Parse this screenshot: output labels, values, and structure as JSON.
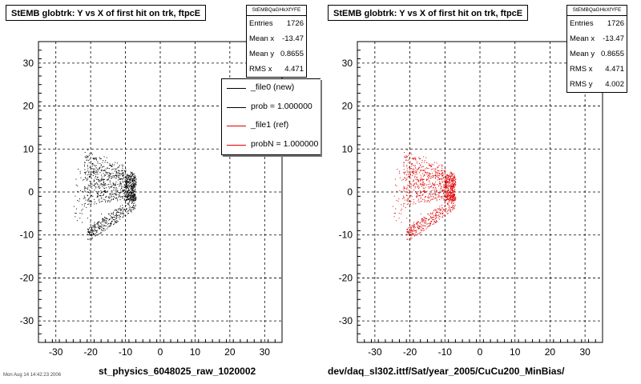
{
  "charts": [
    {
      "title": "StEMB globtrk: Y vs X of first hit on trk, ftpcE",
      "xtitle": "st_physics_6048025_raw_1020002",
      "stats": {
        "header": "StEMBQaGHkXfYFE",
        "rows": [
          {
            "label": "Entries",
            "value": "1726"
          },
          {
            "label": "Mean x",
            "value": "-13.47"
          },
          {
            "label": "Mean y",
            "value": "0.8655"
          },
          {
            "label": "RMS x",
            "value": "4.471"
          }
        ]
      },
      "legend": [
        {
          "label": "_file0 (new)",
          "color": "#000000"
        },
        {
          "label": "prob = 1.000000",
          "color": "#000000"
        },
        {
          "label": "_file1 (ref)",
          "color": "#e00000"
        },
        {
          "label": "probN = 1.000000",
          "color": "#e00000"
        }
      ],
      "date_stamp": "Mon Aug 14 14:42:23 2006"
    },
    {
      "title": "StEMB globtrk: Y vs X of first hit on trk, ftpcE",
      "xtitle": "dev/daq_sl302.ittf/Sat/year_2005/CuCu200_MinBias/",
      "stats": {
        "header": "StEMBQaGHkXfYFE",
        "rows": [
          {
            "label": "Entries",
            "value": "1726"
          },
          {
            "label": "Mean x",
            "value": "-13.47"
          },
          {
            "label": "Mean y",
            "value": "0.8655"
          },
          {
            "label": "RMS x",
            "value": "4.471"
          },
          {
            "label": "RMS y",
            "value": "4.002"
          }
        ]
      }
    }
  ],
  "chart_data": [
    {
      "type": "scatter",
      "title": "StEMB globtrk: Y vs X of first hit on trk, ftpcE",
      "xlabel": "st_physics_6048025_raw_1020002",
      "ylabel": "",
      "xlim": [
        -35,
        35
      ],
      "ylim": [
        -35,
        35
      ],
      "xticks": [
        -30,
        -20,
        -10,
        0,
        10,
        20,
        30
      ],
      "yticks": [
        -30,
        -20,
        -10,
        0,
        10,
        20,
        30
      ],
      "grid": true,
      "marker_color": "#000000",
      "entries": 1726,
      "mean_x": -13.47,
      "mean_y": 0.8655,
      "rms_x": 4.471,
      "rms_y": 4.002,
      "series": [
        {
          "points": [
            [
              -22,
              3
            ],
            [
              -21,
              6
            ],
            [
              -20,
              2
            ],
            [
              -19,
              8
            ],
            [
              -18,
              5
            ],
            [
              -17,
              4
            ],
            [
              -16,
              7
            ],
            [
              -15,
              3
            ],
            [
              -14,
              6
            ],
            [
              -13,
              2
            ],
            [
              -12,
              4
            ],
            [
              -11,
              5
            ],
            [
              -10,
              2
            ],
            [
              -9,
              3
            ],
            [
              -8,
              1
            ],
            [
              -20,
              -2
            ],
            [
              -18,
              -1
            ],
            [
              -16,
              0
            ],
            [
              -14,
              -1
            ],
            [
              -12,
              0
            ],
            [
              -10,
              1
            ],
            [
              -8,
              0
            ],
            [
              -21,
              -6
            ],
            [
              -19,
              -7
            ],
            [
              -17,
              -5
            ],
            [
              -15,
              -5
            ],
            [
              -13,
              -4
            ],
            [
              -11,
              -3
            ],
            [
              -9,
              -2
            ],
            [
              -20,
              -9
            ],
            [
              -18,
              -8
            ],
            [
              -16,
              -7
            ],
            [
              -14,
              -6
            ],
            [
              -12,
              -4
            ],
            [
              -10,
              -3
            ]
          ]
        }
      ]
    },
    {
      "type": "scatter",
      "title": "StEMB globtrk: Y vs X of first hit on trk, ftpcE",
      "xlabel": "dev/daq_sl302.ittf/Sat/year_2005/CuCu200_MinBias/",
      "ylabel": "",
      "xlim": [
        -35,
        35
      ],
      "ylim": [
        -35,
        35
      ],
      "xticks": [
        -30,
        -20,
        -10,
        0,
        10,
        20,
        30
      ],
      "yticks": [
        -30,
        -20,
        -10,
        0,
        10,
        20,
        30
      ],
      "grid": true,
      "marker_color": "#e00000",
      "entries": 1726,
      "mean_x": -13.47,
      "mean_y": 0.8655,
      "rms_x": 4.471,
      "rms_y": 4.002,
      "series": [
        {
          "points": [
            [
              -22,
              3
            ],
            [
              -21,
              6
            ],
            [
              -20,
              2
            ],
            [
              -19,
              8
            ],
            [
              -18,
              5
            ],
            [
              -17,
              4
            ],
            [
              -16,
              7
            ],
            [
              -15,
              3
            ],
            [
              -14,
              6
            ],
            [
              -13,
              2
            ],
            [
              -12,
              4
            ],
            [
              -11,
              5
            ],
            [
              -10,
              2
            ],
            [
              -9,
              3
            ],
            [
              -8,
              1
            ],
            [
              -20,
              -2
            ],
            [
              -18,
              -1
            ],
            [
              -16,
              0
            ],
            [
              -14,
              -1
            ],
            [
              -12,
              0
            ],
            [
              -10,
              1
            ],
            [
              -8,
              0
            ],
            [
              -21,
              -6
            ],
            [
              -19,
              -7
            ],
            [
              -17,
              -5
            ],
            [
              -15,
              -5
            ],
            [
              -13,
              -4
            ],
            [
              -11,
              -3
            ],
            [
              -9,
              -2
            ],
            [
              -20,
              -9
            ],
            [
              -18,
              -8
            ],
            [
              -16,
              -7
            ],
            [
              -14,
              -6
            ],
            [
              -12,
              -4
            ],
            [
              -10,
              -3
            ]
          ]
        }
      ]
    }
  ]
}
